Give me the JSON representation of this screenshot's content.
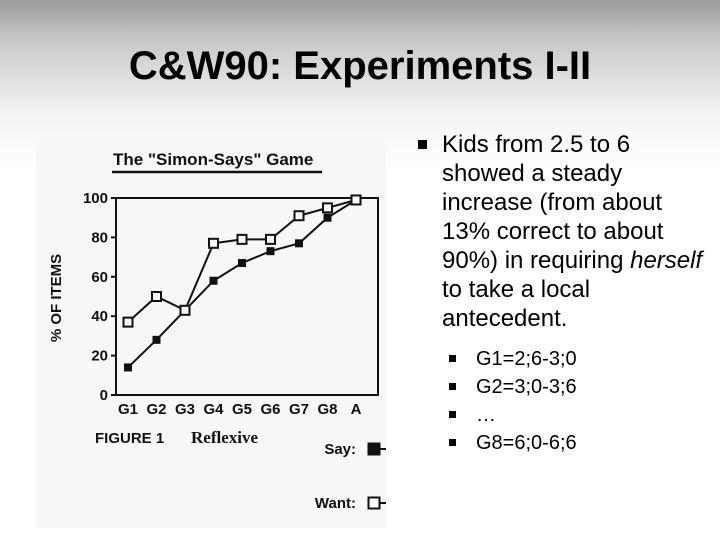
{
  "slide": {
    "title": "C&W90: Experiments I-II"
  },
  "bullets": {
    "main_before": "Kids from 2.5 to 6 showed a steady increase (from about 13% correct to about 90%) in requiring ",
    "main_em": "herself",
    "main_after": " to take a local antecedent.",
    "sub": [
      "G1=2;6-3;0",
      "G2=3;0-3;6",
      "…",
      "G8=6;0-6;6"
    ]
  },
  "chart_data": {
    "type": "line",
    "title": "The \"Simon-Says\" Game",
    "ylabel": "% OF ITEMS",
    "xlabel": "",
    "caption_label": "FIGURE 1",
    "caption_text": "Reflexive",
    "categories": [
      "G1",
      "G2",
      "G3",
      "G4",
      "G5",
      "G6",
      "G7",
      "G8",
      "A"
    ],
    "yticks": [
      0,
      20,
      40,
      60,
      80,
      100
    ],
    "ylim": [
      0,
      100
    ],
    "grid": false,
    "legend_position": "bottom-right",
    "series": [
      {
        "name": "Say:",
        "marker": "filled-square",
        "values": [
          14,
          28,
          43,
          58,
          67,
          73,
          77,
          90,
          99
        ]
      },
      {
        "name": "Want:",
        "marker": "open-square",
        "values": [
          37,
          50,
          43,
          77,
          79,
          79,
          91,
          95,
          99
        ]
      }
    ]
  }
}
